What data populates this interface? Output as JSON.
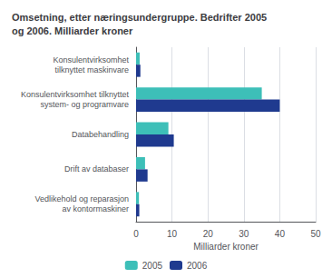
{
  "chart_data": {
    "type": "bar",
    "orientation": "horizontal",
    "title": "Omsetning, etter næringsundergruppe. Bedrifter 2005\nog 2006. Milliarder kroner",
    "categories": [
      "Konsulentvirksomhet\ntilknyttet maskinvare",
      "Konsulentvirksomhet tilknyttet\nsystem- og programvare",
      "Databehandling",
      "Drift av databaser",
      "Vedlikehold og reparasjon\nav kontormaskiner"
    ],
    "series": [
      {
        "name": "2005",
        "color": "#3dbfb8",
        "values": [
          1.0,
          35.0,
          9.0,
          2.5,
          0.8
        ]
      },
      {
        "name": "2006",
        "color": "#1f3a8f",
        "values": [
          1.2,
          40.0,
          10.5,
          3.2,
          0.9
        ]
      }
    ],
    "xlabel": "Milliarder kroner",
    "xlim": [
      0,
      50
    ],
    "xticks": [
      0,
      10,
      20,
      30,
      40,
      50
    ],
    "grid": true,
    "legend": "bottom"
  }
}
